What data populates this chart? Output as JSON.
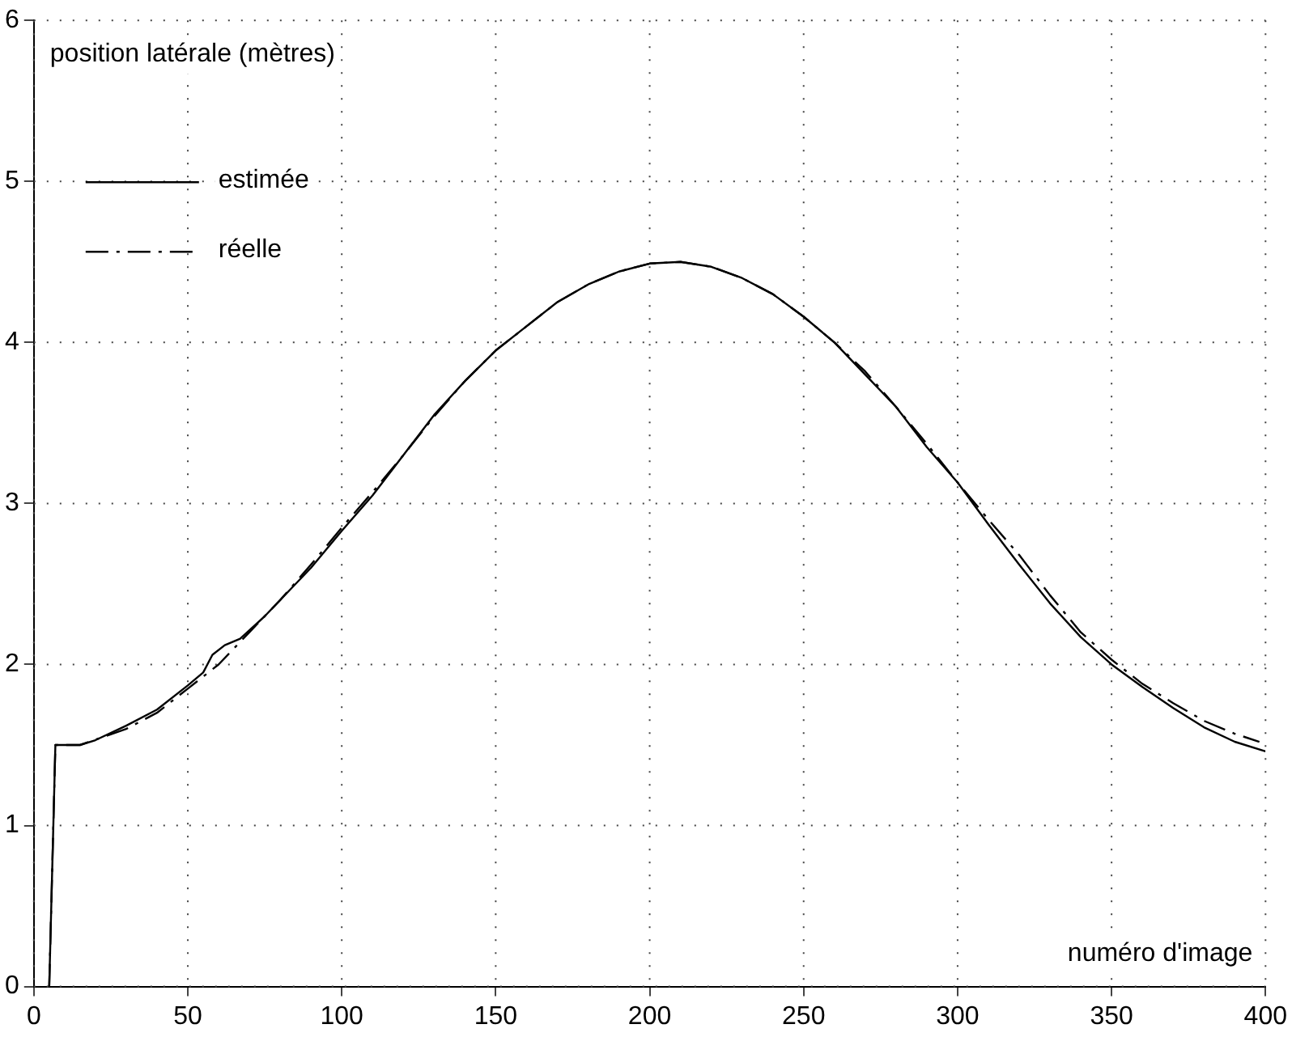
{
  "chart_data": {
    "type": "line",
    "xlabel": "numéro d'image",
    "ylabel": "position latérale (mètres)",
    "xlim": [
      0,
      400
    ],
    "ylim": [
      0,
      6
    ],
    "xticks": [
      0,
      50,
      100,
      150,
      200,
      250,
      300,
      350,
      400
    ],
    "yticks": [
      0,
      1,
      2,
      3,
      4,
      5,
      6
    ],
    "grid": true,
    "legend": "top left",
    "marker": "none",
    "series": [
      {
        "name": "estimée",
        "color": "#000000",
        "line_style": "solid",
        "x": [
          5,
          7,
          15,
          20,
          30,
          40,
          50,
          55,
          58,
          62,
          67,
          75,
          90,
          100,
          110,
          120,
          130,
          140,
          150,
          160,
          170,
          180,
          190,
          200,
          210,
          220,
          230,
          240,
          250,
          260,
          270,
          280,
          290,
          300,
          310,
          320,
          330,
          340,
          350,
          360,
          370,
          380,
          390,
          400
        ],
        "values": [
          0,
          1.5,
          1.5,
          1.53,
          1.62,
          1.72,
          1.87,
          1.95,
          2.06,
          2.12,
          2.16,
          2.3,
          2.6,
          2.83,
          3.05,
          3.3,
          3.55,
          3.76,
          3.95,
          4.1,
          4.25,
          4.36,
          4.44,
          4.49,
          4.5,
          4.47,
          4.4,
          4.3,
          4.16,
          4,
          3.8,
          3.6,
          3.35,
          3.13,
          2.87,
          2.62,
          2.38,
          2.17,
          2,
          1.86,
          1.73,
          1.61,
          1.52,
          1.46
        ]
      },
      {
        "name": "réelle",
        "color": "#000000",
        "line_style": "dashdot",
        "x": [
          5,
          7,
          15,
          30,
          40,
          50,
          60,
          70,
          80,
          90,
          100,
          110,
          120,
          130,
          140,
          150,
          160,
          170,
          180,
          190,
          200,
          210,
          220,
          230,
          240,
          250,
          260,
          270,
          280,
          290,
          300,
          310,
          320,
          330,
          340,
          350,
          360,
          370,
          380,
          390,
          398
        ],
        "values": [
          0,
          1.5,
          1.5,
          1.6,
          1.7,
          1.85,
          2,
          2.2,
          2.4,
          2.62,
          2.85,
          3.07,
          3.3,
          3.54,
          3.76,
          3.95,
          4.1,
          4.25,
          4.36,
          4.44,
          4.49,
          4.5,
          4.47,
          4.4,
          4.3,
          4.16,
          4,
          3.82,
          3.6,
          3.37,
          3.13,
          2.9,
          2.68,
          2.43,
          2.2,
          2.03,
          1.88,
          1.76,
          1.65,
          1.57,
          1.52
        ]
      }
    ]
  }
}
